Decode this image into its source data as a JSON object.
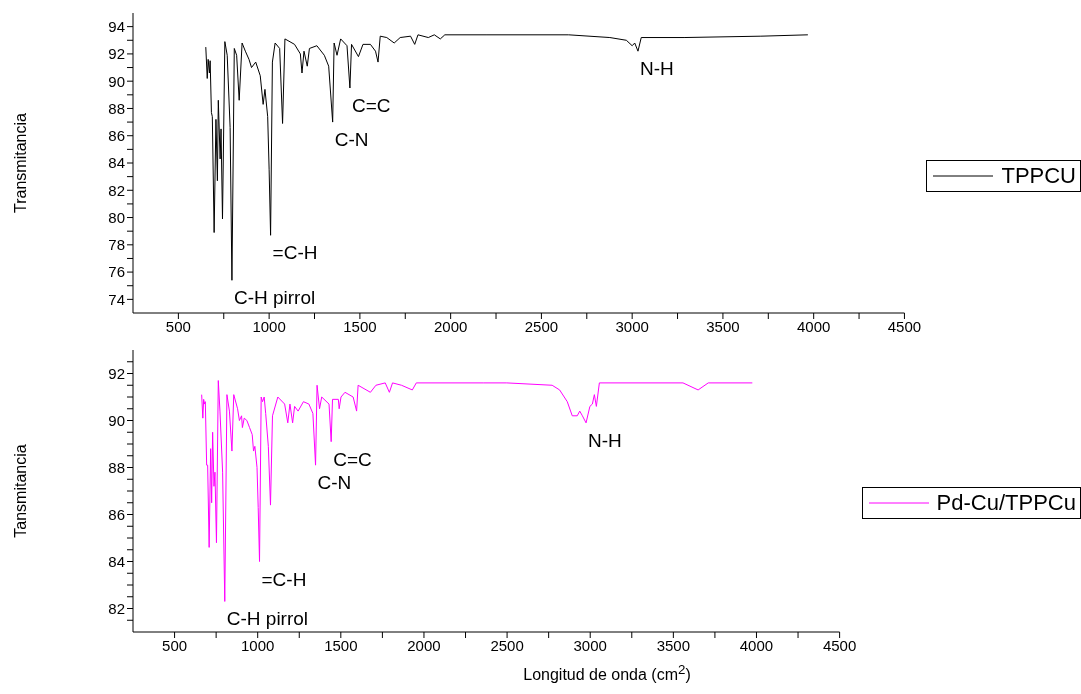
{
  "chart_data": [
    {
      "type": "line",
      "ylabel": "Transmitancia",
      "xlim": [
        250,
        4500
      ],
      "ylim": [
        73,
        95
      ],
      "xticks": [
        500,
        {
          "value": 750,
          "label": null
        },
        1000,
        {
          "value": 1250,
          "label": null
        },
        1500,
        {
          "value": 1750,
          "label": null
        },
        2000,
        {
          "value": 2250,
          "label": null
        },
        2500,
        {
          "value": 2750,
          "label": null
        },
        3000,
        {
          "value": 3250,
          "label": null
        },
        3500,
        {
          "value": 3750,
          "label": null
        },
        4000,
        {
          "value": 4250,
          "label": null
        },
        4500
      ],
      "yticks": [
        74,
        {
          "value": 75,
          "label": null
        },
        76,
        {
          "value": 77,
          "label": null
        },
        78,
        {
          "value": 79,
          "label": null
        },
        80,
        {
          "value": 81,
          "label": null
        },
        82,
        {
          "value": 83,
          "label": null
        },
        84,
        {
          "value": 85,
          "label": null
        },
        86,
        {
          "value": 87,
          "label": null
        },
        88,
        {
          "value": 89,
          "label": null
        },
        90,
        {
          "value": 91,
          "label": null
        },
        92,
        {
          "value": 93,
          "label": null
        },
        94
      ],
      "legend": "right",
      "annotations": [
        {
          "text": "C-H pirrol",
          "x": 795,
          "y": 75.4
        },
        {
          "text": "=C-H",
          "x": 1008,
          "y": 78.7
        },
        {
          "text": "C-N",
          "x": 1350,
          "y": 87.0
        },
        {
          "text": "C=C",
          "x": 1445,
          "y": 89.5
        },
        {
          "text": "N-H",
          "x": 3032,
          "y": 92.2
        }
      ],
      "series": [
        {
          "name": "TPPCU",
          "color": "#000000",
          "x": [
            651,
            659,
            664,
            671,
            675,
            682,
            687,
            697,
            707,
            715,
            720,
            730,
            735,
            743,
            756,
            769,
            785,
            795,
            808,
            821,
            835,
            851,
            869,
            889,
            903,
            926,
            951,
            967,
            977,
            992,
            1000,
            1008,
            1018,
            1033,
            1058,
            1074,
            1087,
            1140,
            1172,
            1181,
            1192,
            1210,
            1222,
            1263,
            1304,
            1328,
            1350,
            1358,
            1374,
            1394,
            1429,
            1445,
            1454,
            1492,
            1517,
            1558,
            1586,
            1600,
            1612,
            1648,
            1689,
            1722,
            1779,
            1802,
            1820,
            1877,
            1910,
            1943,
            1968,
            2195,
            2650,
            2877,
            2968,
            3000,
            3014,
            3032,
            3050,
            3286,
            3709,
            3968
          ],
          "values": [
            92.5,
            90.2,
            91.6,
            90.6,
            91.5,
            87.7,
            87.4,
            78.9,
            87.2,
            82.7,
            88.6,
            84.3,
            86.5,
            79.9,
            92.9,
            91.9,
            86.6,
            75.4,
            92.4,
            91.9,
            88.6,
            92.8,
            92.2,
            91.6,
            91.0,
            91.4,
            90.4,
            88.3,
            89.4,
            87.4,
            83.5,
            78.7,
            91.4,
            92.8,
            92.4,
            86.9,
            93.1,
            92.7,
            92.0,
            90.6,
            92.2,
            91.1,
            92.4,
            92.6,
            91.9,
            91.1,
            87.0,
            92.8,
            91.9,
            93.1,
            92.6,
            89.5,
            92.7,
            91.8,
            92.7,
            92.7,
            92.2,
            91.4,
            93.3,
            93.2,
            92.8,
            93.2,
            93.3,
            92.7,
            93.4,
            93.2,
            93.4,
            93.1,
            93.4,
            93.4,
            93.4,
            93.2,
            93.0,
            92.6,
            92.8,
            92.2,
            93.2,
            93.2,
            93.3,
            93.4
          ]
        }
      ]
    },
    {
      "type": "line",
      "xlabel": "Longitud de onda (cm$^{2}$)",
      "ylabel": "Tansmitancia",
      "xlim": [
        250,
        4500
      ],
      "ylim": [
        81,
        93
      ],
      "xticks": [
        500,
        {
          "value": 750,
          "label": null
        },
        1000,
        {
          "value": 1250,
          "label": null
        },
        1500,
        {
          "value": 1750,
          "label": null
        },
        2000,
        {
          "value": 2250,
          "label": null
        },
        2500,
        {
          "value": 2750,
          "label": null
        },
        3000,
        {
          "value": 3250,
          "label": null
        },
        3500,
        {
          "value": 3750,
          "label": null
        },
        4000,
        {
          "value": 4250,
          "label": null
        },
        4500
      ],
      "yticks": [
        {
          "value": 81.5,
          "label": null
        },
        82,
        {
          "value": 82.5,
          "label": null
        },
        {
          "value": 83,
          "label": null
        },
        {
          "value": 83.5,
          "label": null
        },
        84,
        {
          "value": 84.5,
          "label": null
        },
        {
          "value": 85,
          "label": null
        },
        {
          "value": 85.5,
          "label": null
        },
        86,
        {
          "value": 86.5,
          "label": null
        },
        {
          "value": 87,
          "label": null
        },
        {
          "value": 87.5,
          "label": null
        },
        88,
        {
          "value": 88.5,
          "label": null
        },
        {
          "value": 89,
          "label": null
        },
        {
          "value": 89.5,
          "label": null
        },
        90,
        {
          "value": 90.5,
          "label": null
        },
        {
          "value": 91,
          "label": null
        },
        {
          "value": 91.5,
          "label": null
        },
        92,
        {
          "value": 92.5,
          "label": null
        }
      ],
      "legend": "right",
      "annotations": [
        {
          "text": "C-H pirrol",
          "x": 802,
          "y": 82.3
        },
        {
          "text": "=C-H",
          "x": 1011,
          "y": 84.0
        },
        {
          "text": "C-N",
          "x": 1348,
          "y": 88.1
        },
        {
          "text": "C=C",
          "x": 1442,
          "y": 89.1
        },
        {
          "text": "N-H",
          "x": 2975,
          "y": 89.9
        }
      ],
      "series": [
        {
          "name": "Pd-Cu/TPPCu",
          "color": "#ff00ff",
          "x": [
            663,
            670,
            675,
            680,
            685,
            693,
            699,
            708,
            717,
            723,
            729,
            737,
            743,
            752,
            763,
            773,
            789,
            802,
            815,
            830,
            845,
            856,
            879,
            890,
            903,
            908,
            919,
            935,
            951,
            967,
            975,
            983,
            996,
            1003,
            1011,
            1021,
            1029,
            1039,
            1048,
            1064,
            1077,
            1089,
            1121,
            1162,
            1181,
            1194,
            1210,
            1222,
            1243,
            1275,
            1308,
            1332,
            1348,
            1357,
            1372,
            1385,
            1429,
            1442,
            1450,
            1485,
            1490,
            1501,
            1525,
            1574,
            1595,
            1604,
            1678,
            1711,
            1767,
            1792,
            1811,
            1865,
            1930,
            1954,
            2360,
            2498,
            2771,
            2816,
            2862,
            2892,
            2922,
            2937,
            2953,
            2975,
            2998,
            3013,
            3025,
            3037,
            3055,
            3558,
            3649,
            3710,
            3975
          ],
          "values": [
            91.1,
            90.1,
            90.9,
            90.7,
            90.8,
            88.1,
            88.1,
            84.6,
            88.8,
            86.5,
            89.5,
            87.2,
            87.8,
            84.8,
            91.7,
            90.4,
            87.8,
            82.3,
            91.1,
            90.4,
            88.7,
            91.1,
            90.5,
            90.0,
            90.2,
            89.7,
            90.1,
            90.0,
            89.7,
            89.4,
            88.7,
            88.9,
            88.0,
            86.3,
            84.0,
            91.0,
            90.8,
            91.0,
            90.3,
            88.9,
            86.4,
            90.2,
            91.0,
            90.7,
            89.9,
            90.7,
            89.9,
            90.6,
            90.4,
            90.8,
            90.7,
            90.3,
            88.1,
            91.5,
            90.5,
            91.0,
            90.7,
            89.1,
            90.9,
            90.9,
            90.5,
            91.0,
            91.2,
            91.0,
            90.4,
            91.5,
            91.2,
            91.5,
            91.6,
            91.2,
            91.6,
            91.5,
            91.3,
            91.6,
            91.6,
            91.6,
            91.5,
            91.3,
            90.8,
            90.2,
            90.2,
            90.4,
            90.2,
            89.9,
            90.6,
            90.7,
            91.1,
            90.6,
            91.6,
            91.6,
            91.3,
            91.6,
            91.6
          ]
        }
      ]
    }
  ]
}
